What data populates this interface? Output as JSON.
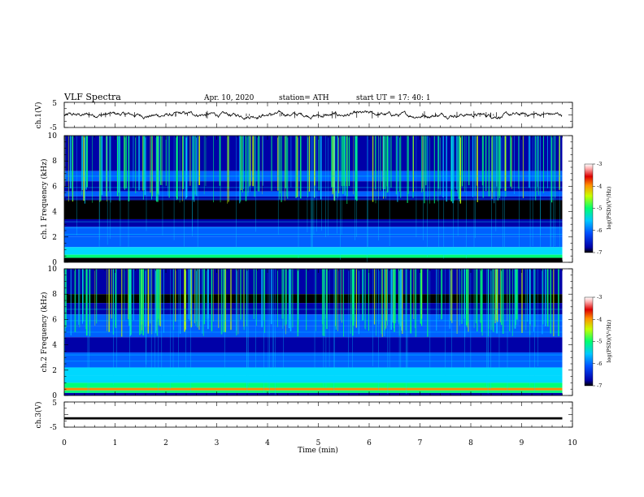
{
  "header": {
    "title": "VLF  Spectra",
    "date": "Apr. 10, 2020",
    "station": "station= ATH",
    "start": "start  UT  =   17: 40: 1"
  },
  "colors": {
    "colormap": [
      "#000000",
      "#0000a8",
      "#0060ff",
      "#00d8ff",
      "#00ff78",
      "#c8ff00",
      "#ff8800",
      "#dd0000",
      "#ffffff"
    ]
  },
  "chart_data": [
    {
      "type": "line",
      "panel": "ch1-waveform",
      "ylabel": "ch.1(V)",
      "ylim": [
        -5,
        5
      ],
      "yticks": [
        "5",
        "-5"
      ],
      "xlim": [
        0,
        10
      ],
      "x_extent_min": 9.8,
      "series": [
        {
          "values": [
            0.0
          ]
        }
      ]
    },
    {
      "type": "heatmap",
      "panel": "ch1-spectrogram",
      "ylabel": "ch.1 Frequency (kHz)",
      "ylim": [
        0,
        10
      ],
      "yticks": [
        "0",
        "2",
        "4",
        "6",
        "8",
        "10"
      ],
      "xlim": [
        0,
        10
      ],
      "colorbar": {
        "label": "log(PSD)(V²/Hz)",
        "range": [
          -7,
          -3
        ],
        "ticks": [
          "-3",
          "-4",
          "-5",
          "-6",
          "-7"
        ]
      }
    },
    {
      "type": "heatmap",
      "panel": "ch2-spectrogram",
      "ylabel": "ch.2 Frequency (kHz)",
      "ylim": [
        0,
        10
      ],
      "yticks": [
        "0",
        "2",
        "4",
        "6",
        "8",
        "10"
      ],
      "xlim": [
        0,
        10
      ],
      "colorbar": {
        "label": "log(PSD)(V²/Hz)",
        "range": [
          -7,
          -3
        ],
        "ticks": [
          "-3",
          "-4",
          "-5",
          "-6",
          "-7"
        ]
      }
    },
    {
      "type": "line",
      "panel": "ch3-waveform",
      "ylabel": "ch.3(V)",
      "ylim": [
        -5,
        5
      ],
      "yticks": [
        "5",
        "-5"
      ],
      "xlim": [
        0,
        10
      ],
      "series": [
        {
          "values": [
            -1.5
          ]
        }
      ]
    }
  ],
  "x_axis": {
    "xlabel": "Time  (min)",
    "ticks": [
      "0",
      "1",
      "2",
      "3",
      "4",
      "5",
      "6",
      "7",
      "8",
      "9",
      "10"
    ]
  }
}
